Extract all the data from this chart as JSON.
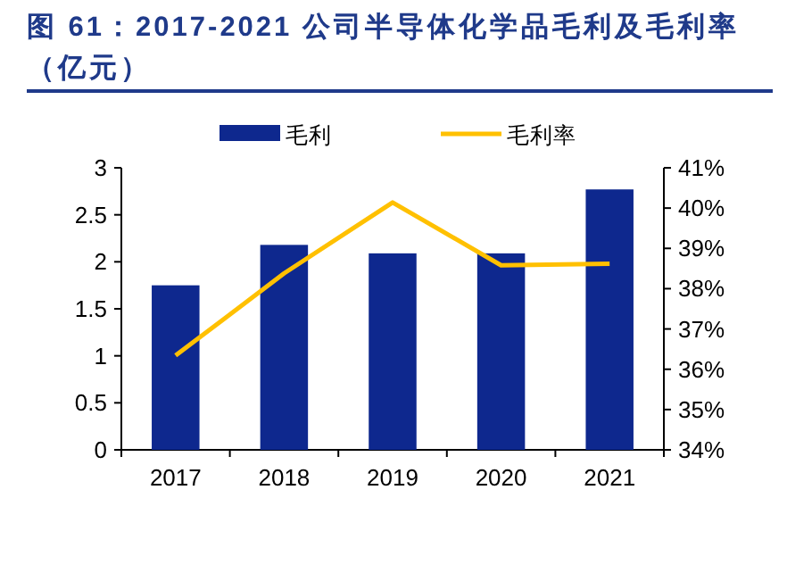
{
  "chart_data": {
    "type": "bar",
    "title": "图 61：2017-2021 公司半导体化学品毛利及毛利率（亿元）",
    "categories": [
      "2017",
      "2018",
      "2019",
      "2020",
      "2021"
    ],
    "series": [
      {
        "name": "毛利",
        "color": "#0e288e",
        "values": [
          1.75,
          2.18,
          2.09,
          2.09,
          2.77
        ]
      },
      {
        "name": "毛利率",
        "type": "line",
        "axis": "y2",
        "color": "#ffc000",
        "values": [
          36.34,
          38.38,
          40.14,
          38.58,
          38.62
        ]
      }
    ],
    "ylim": [
      0,
      3
    ],
    "yticks": [
      0,
      0.5,
      1,
      1.5,
      2,
      2.5,
      3
    ],
    "y2lim": [
      34,
      41
    ],
    "y2ticks": [
      {
        "value": 34,
        "label": "34%"
      },
      {
        "value": 35,
        "label": "35%"
      },
      {
        "value": 36,
        "label": "36%"
      },
      {
        "value": 37,
        "label": "37%"
      },
      {
        "value": 38,
        "label": "38%"
      },
      {
        "value": 39,
        "label": "39%"
      },
      {
        "value": 40,
        "label": "40%"
      },
      {
        "value": 41,
        "label": "41%"
      }
    ],
    "legend": "top",
    "grid": false,
    "marker": "none",
    "line_style": "solid"
  }
}
